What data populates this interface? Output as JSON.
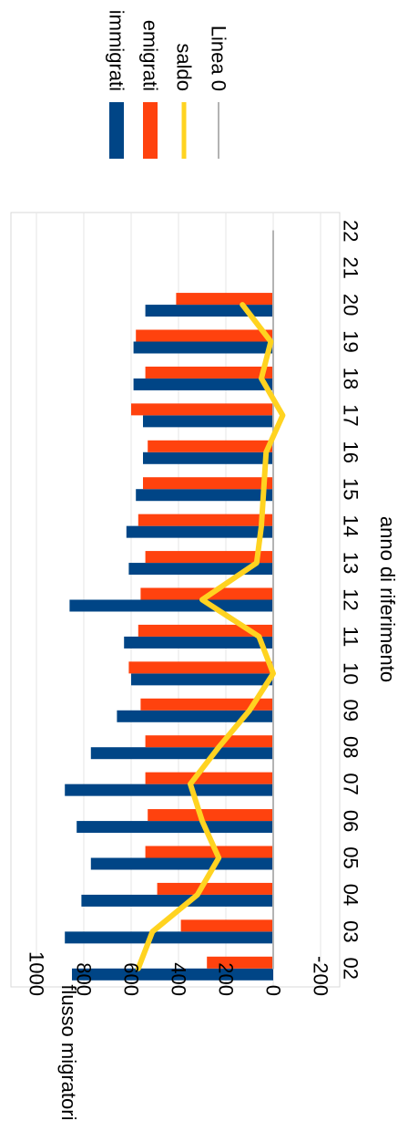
{
  "chart_data": {
    "type": "bar",
    "orientation": "rotated-90-clockwise",
    "categories": [
      "02",
      "03",
      "04",
      "05",
      "06",
      "07",
      "08",
      "09",
      "10",
      "11",
      "12",
      "13",
      "14",
      "15",
      "16",
      "17",
      "18",
      "19",
      "20",
      "21",
      "22"
    ],
    "series": [
      {
        "name": "immigrati",
        "kind": "bar",
        "color": "#004586",
        "values": [
          850,
          880,
          810,
          770,
          830,
          880,
          770,
          660,
          600,
          630,
          860,
          610,
          620,
          580,
          550,
          550,
          590,
          590,
          540,
          null,
          null
        ]
      },
      {
        "name": "emigrati",
        "kind": "bar",
        "color": "#ff420e",
        "values": [
          280,
          390,
          490,
          540,
          530,
          540,
          540,
          560,
          610,
          570,
          560,
          540,
          570,
          550,
          530,
          600,
          540,
          580,
          410,
          null,
          null
        ]
      },
      {
        "name": "saldo",
        "kind": "line",
        "color": "#ffd320",
        "values": [
          570,
          510,
          320,
          230,
          300,
          350,
          230,
          100,
          0,
          60,
          300,
          70,
          50,
          40,
          30,
          -40,
          50,
          10,
          130,
          null,
          null
        ]
      },
      {
        "name": "Linea 0",
        "kind": "line",
        "color": "#b3b3b3",
        "values": [
          0,
          0,
          0,
          0,
          0,
          0,
          0,
          0,
          0,
          0,
          0,
          0,
          0,
          0,
          0,
          0,
          0,
          0,
          0,
          0,
          0
        ]
      }
    ],
    "xlabel": "anno di riferimento",
    "ylabel": "flusso migratorio",
    "ylim": [
      -200,
      1000
    ],
    "yticks": [
      "-200",
      "0",
      "200",
      "400",
      "600",
      "800",
      "1000"
    ],
    "grid": true,
    "legend_position": "top-right"
  }
}
